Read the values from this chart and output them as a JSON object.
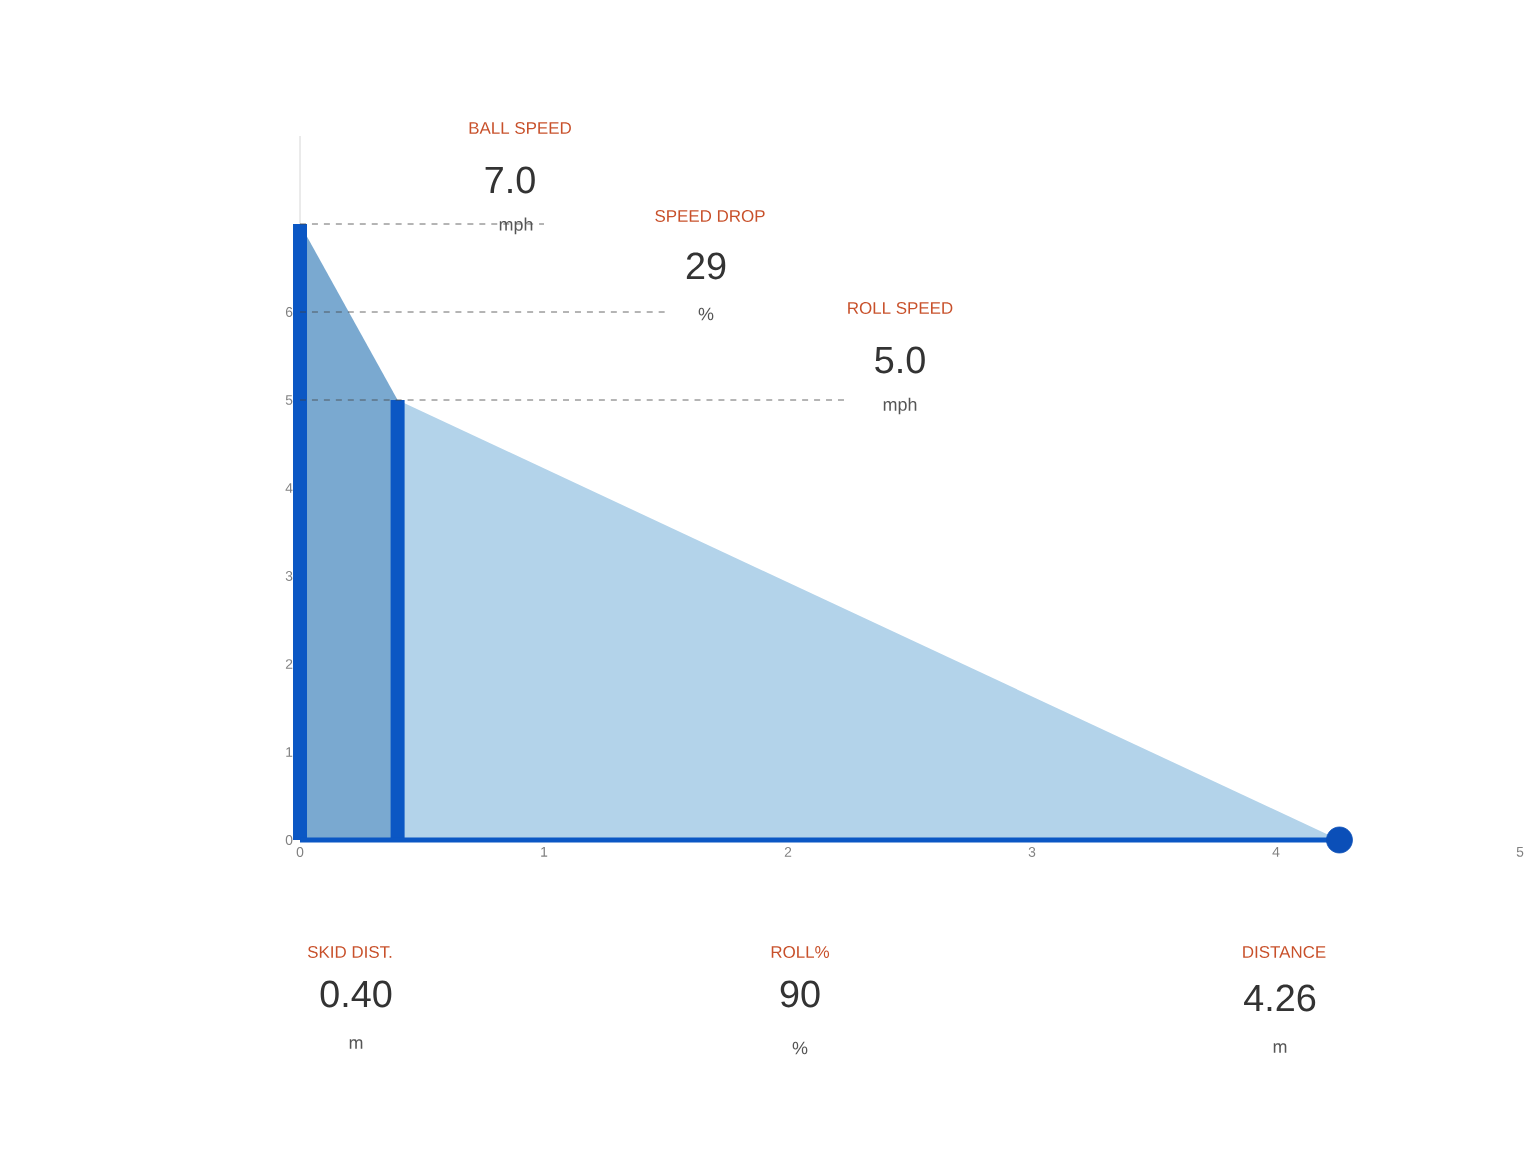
{
  "chart_data": {
    "type": "area",
    "xlim": [
      0,
      5
    ],
    "ylim": [
      0,
      8
    ],
    "xticks": [
      0,
      1,
      2,
      3,
      4,
      5
    ],
    "yticks": [
      0,
      1,
      2,
      3,
      4,
      5,
      6
    ],
    "series": [
      {
        "x": [
          0,
          0.4
        ],
        "values": [
          7,
          5
        ],
        "color": "#7aa9d0"
      },
      {
        "x": [
          0.4,
          4.26
        ],
        "values": [
          5,
          0
        ],
        "color": "#b3d3ea"
      },
      {
        "type": "bar",
        "x": [
          0,
          0.4
        ],
        "values": [
          7,
          5
        ],
        "color": "#0b57c4"
      },
      {
        "type": "scatter",
        "x": [
          4.26
        ],
        "values": [
          0
        ],
        "color": "#0b4fb8"
      }
    ],
    "ref_lines": [
      {
        "axis": "y",
        "value": 7,
        "color": "#444444",
        "line_style": "dashed"
      },
      {
        "axis": "y",
        "value": 6,
        "color": "#444444",
        "line_style": "dashed"
      },
      {
        "axis": "y",
        "value": 5,
        "color": "#444444",
        "line_style": "dashed"
      }
    ],
    "annotations": [
      "BALL SPEED",
      "7.0",
      "mph",
      "SPEED DROP",
      "29",
      "%",
      "ROLL SPEED",
      "5.0",
      "mph",
      "SKID DIST.",
      "0.40",
      "m",
      "ROLL%",
      "90",
      "%",
      "DISTANCE",
      "4.26",
      "m"
    ]
  }
}
